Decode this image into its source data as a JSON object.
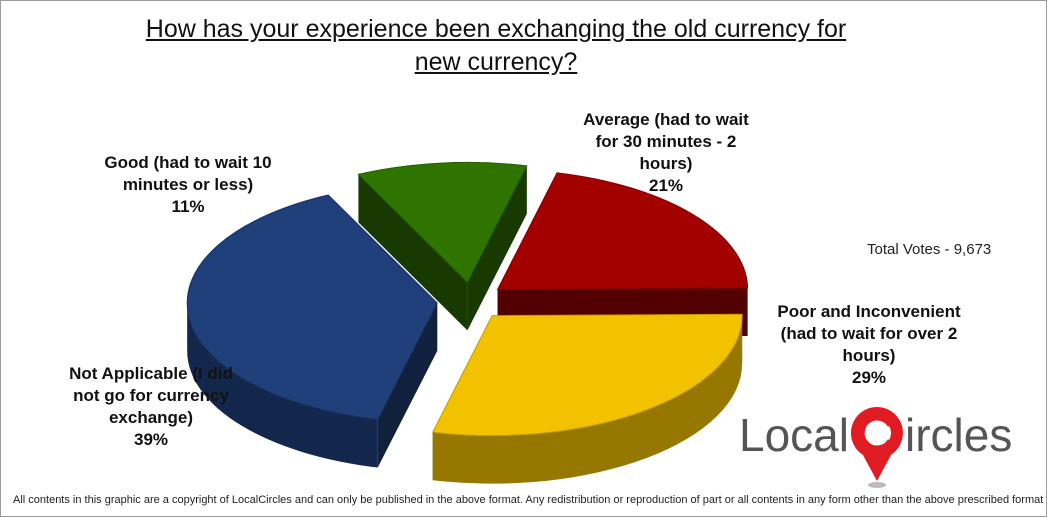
{
  "chart_data": {
    "type": "pie",
    "title": "How has your experience been exchanging the old currency for new currency?",
    "slices": [
      {
        "label": "Average (had to wait for 30 minutes - 2 hours)",
        "value": 21,
        "value_label": "21%",
        "color": "#a30000"
      },
      {
        "label": "Poor and Inconvenient (had to wait for over 2 hours)",
        "value": 29,
        "value_label": "29%",
        "color": "#f2c200"
      },
      {
        "label": "Not Applicable (I did not go for currency exchange)",
        "value": 39,
        "value_label": "39%",
        "color": "#1f3f7a"
      },
      {
        "label": "Good (had to wait 10 minutes or less)",
        "value": 11,
        "value_label": "11%",
        "color": "#2f7300"
      }
    ],
    "annotation": "Total Votes - 9,673",
    "legend": "none",
    "style": "3d-exploded"
  },
  "footer": "All contents in this graphic are a copyright of LocalCircles and can only be published in the above format. Any redistribution or reproduction of part or all contents in any form other than the above prescribed format is prohibited.",
  "logo": {
    "text_left": "Local",
    "text_right": "ircles",
    "brand_color": "#e01b22"
  }
}
